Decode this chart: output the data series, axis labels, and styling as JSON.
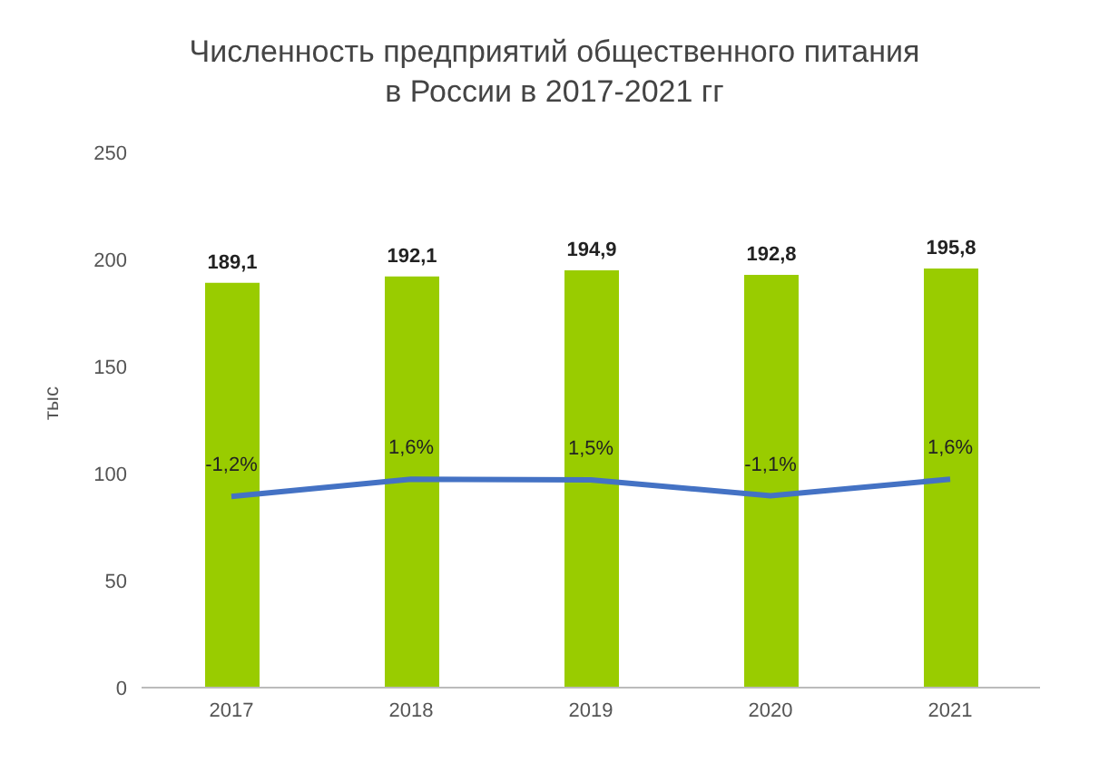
{
  "chart_data": {
    "type": "bar",
    "title": "Численность предприятий общественного питания\nв России в 2017-2021 гг",
    "ylabel": "тыс",
    "categories": [
      "2017",
      "2018",
      "2019",
      "2020",
      "2021"
    ],
    "series": [
      {
        "color": "#99cc00",
        "values": [
          189.1,
          192.1,
          194.9,
          192.8,
          195.8
        ],
        "value_labels": [
          "189,1",
          "192,1",
          "194,9",
          "192,8",
          "195,8"
        ]
      },
      {
        "type": "line",
        "color": "#4472c4",
        "axis": "y2",
        "values": [
          -1.2,
          1.6,
          1.5,
          -1.1,
          1.6
        ],
        "value_labels": [
          "-1,2%",
          "1,6%",
          "1,5%",
          "-1,1%",
          "1,6%"
        ]
      }
    ],
    "ylim": [
      0,
      250
    ],
    "yticks": [
      0,
      50,
      100,
      150,
      200,
      250
    ],
    "grid": false,
    "legend": false,
    "marker": "none"
  }
}
